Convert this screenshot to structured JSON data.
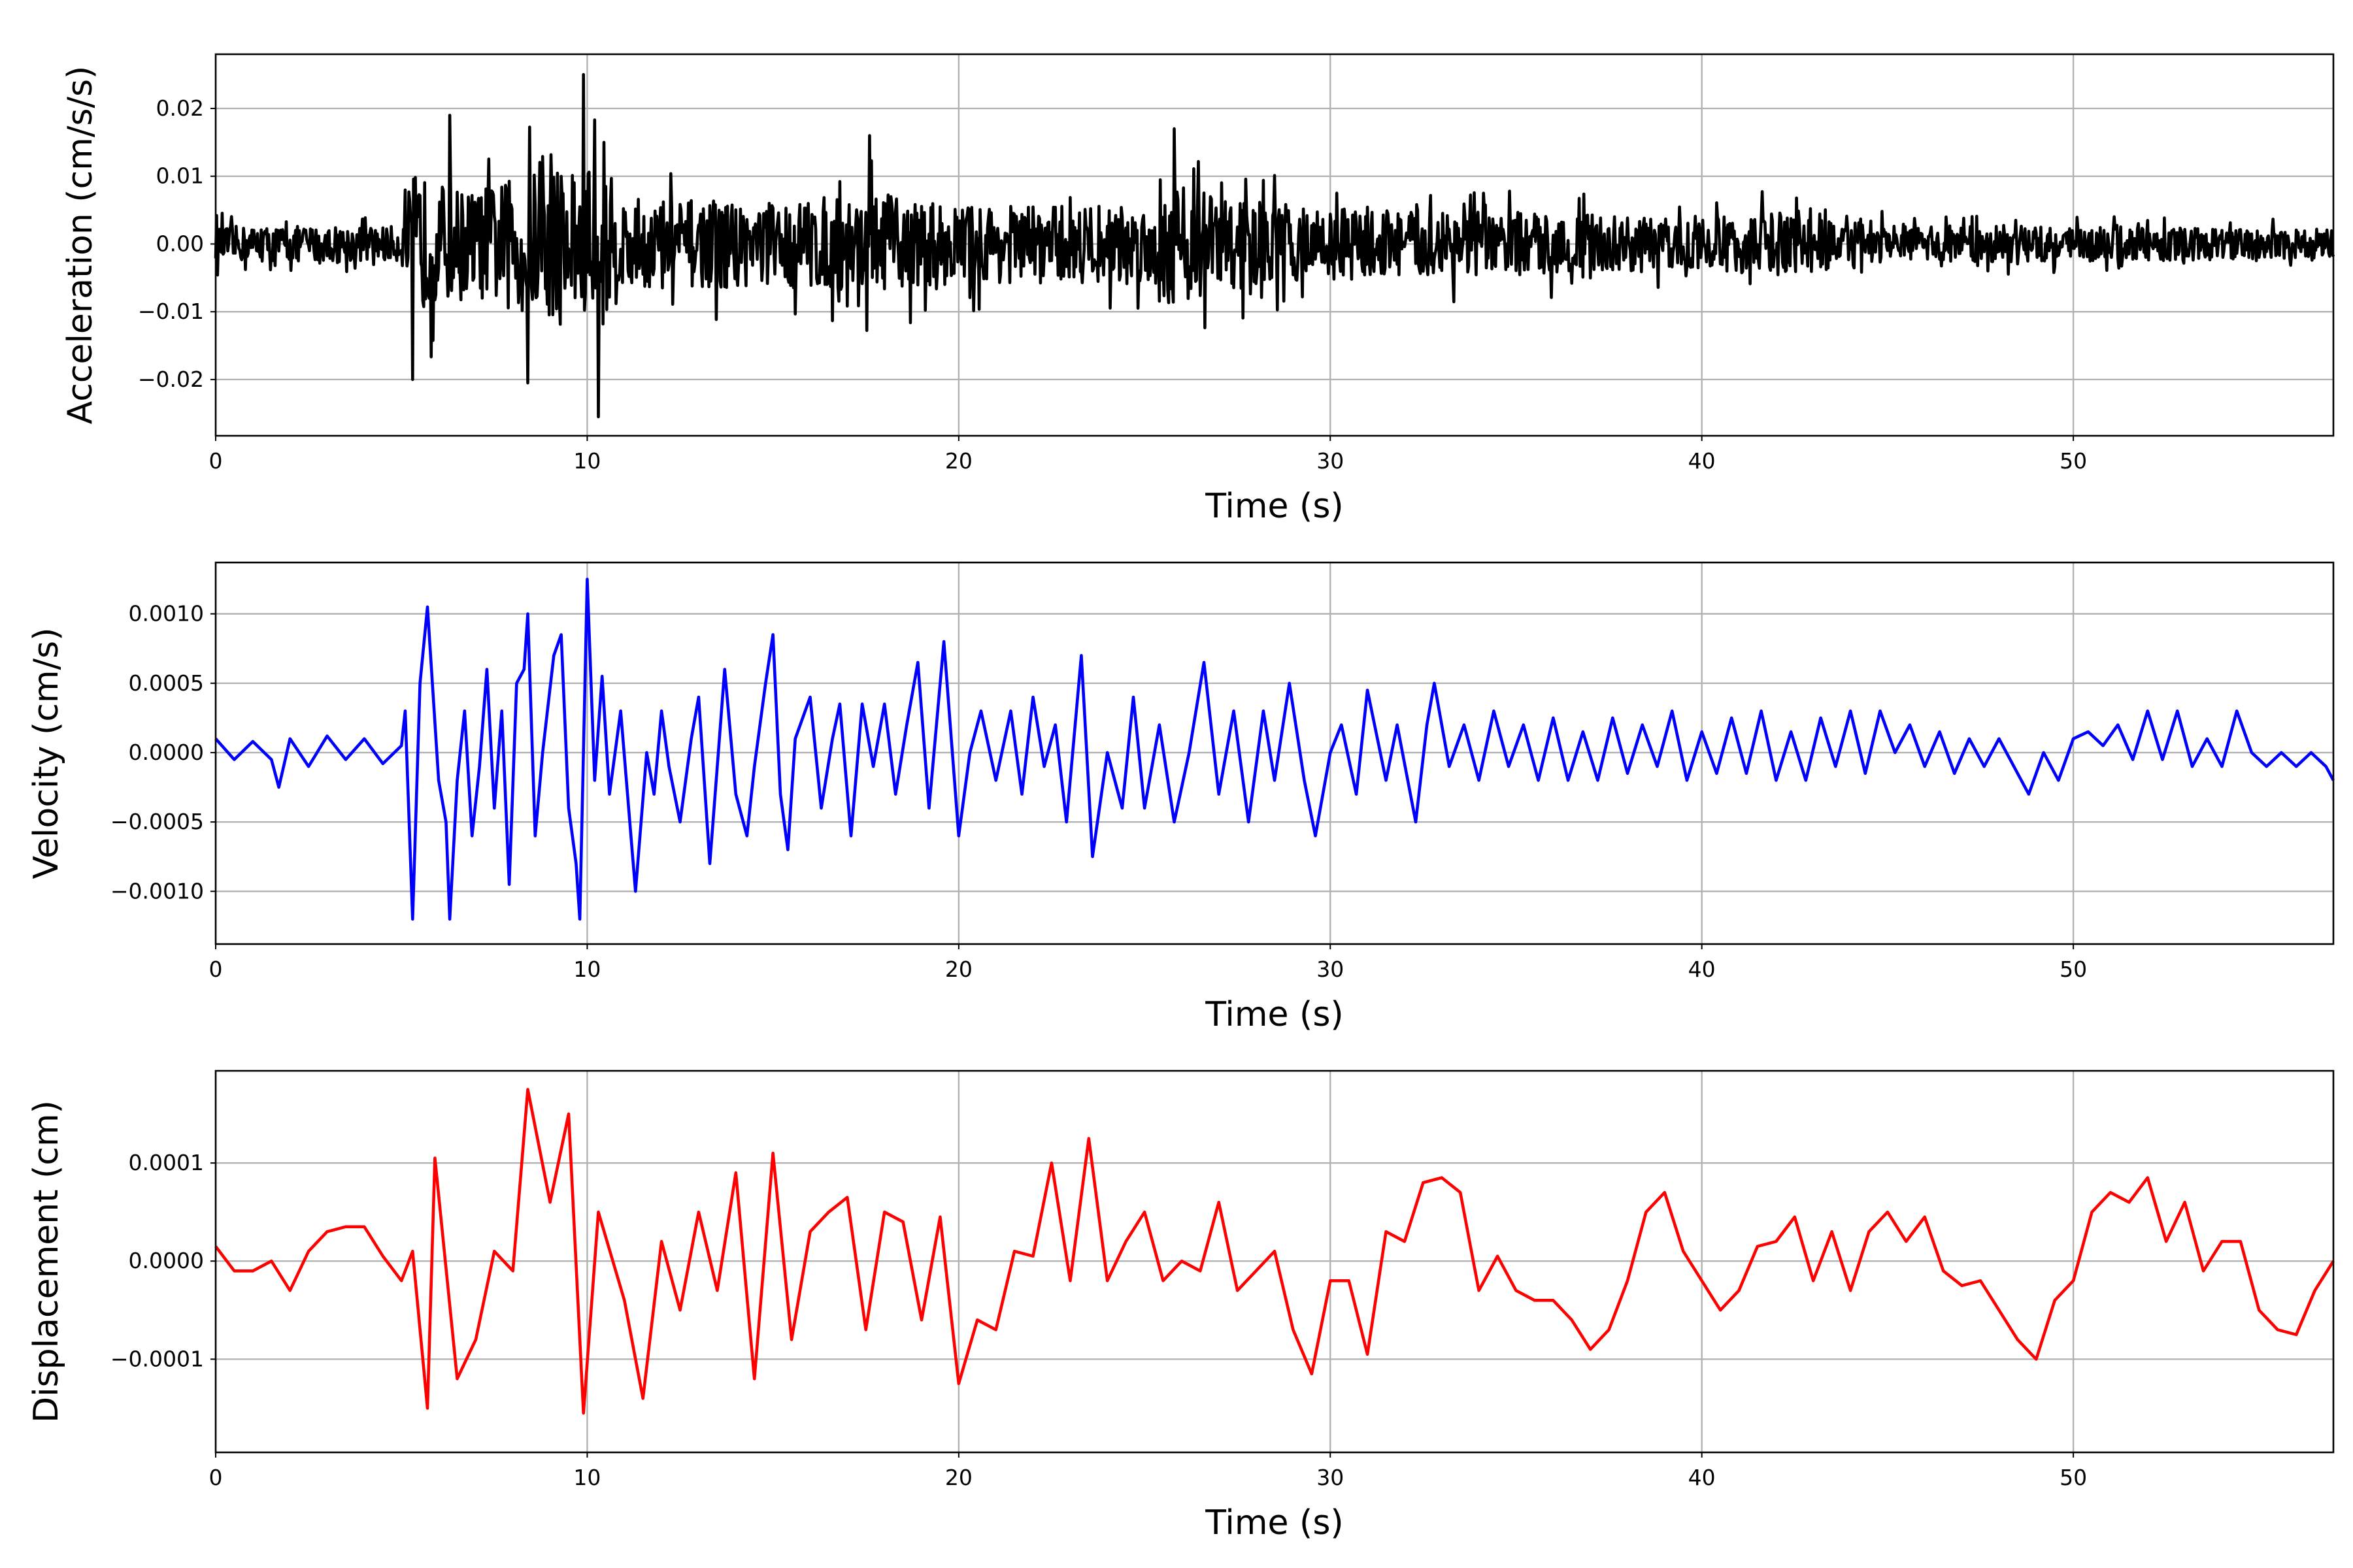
{
  "chart_data": [
    {
      "type": "line",
      "title": "",
      "xlabel": "Time (s)",
      "ylabel": "Acceleration (cm/s/s)",
      "xlim": [
        0,
        57
      ],
      "ylim": [
        -0.0283,
        0.028
      ],
      "xticks": [
        0,
        10,
        20,
        30,
        40,
        50
      ],
      "xtick_labels": [
        "0",
        "10",
        "20",
        "30",
        "40",
        "50"
      ],
      "yticks": [
        -0.02,
        -0.01,
        0,
        0.01,
        0.02
      ],
      "ytick_labels": [
        "−0.02",
        "−0.01",
        "0.00",
        "0.01",
        "0.02"
      ],
      "grid": true,
      "color": "#000000",
      "series_note": "dense noisy record; amplitude envelope (t, amplitude) and notable peaks (t, value)",
      "envelope": [
        [
          0,
          0.005
        ],
        [
          5,
          0.005
        ],
        [
          5.3,
          0.02
        ],
        [
          6,
          0.017
        ],
        [
          7,
          0.015
        ],
        [
          8.4,
          0.02
        ],
        [
          9.9,
          0.025
        ],
        [
          10.3,
          0.025
        ],
        [
          11,
          0.013
        ],
        [
          15,
          0.012
        ],
        [
          17.6,
          0.014
        ],
        [
          20,
          0.011
        ],
        [
          25,
          0.011
        ],
        [
          25.8,
          0.017
        ],
        [
          28,
          0.012
        ],
        [
          30,
          0.01
        ],
        [
          35,
          0.009
        ],
        [
          40,
          0.007
        ],
        [
          42,
          0.009
        ],
        [
          45,
          0.005
        ],
        [
          50,
          0.005
        ],
        [
          57,
          0.004
        ]
      ],
      "peaks": [
        [
          9.9,
          0.025
        ],
        [
          10.3,
          -0.0255
        ],
        [
          5.3,
          -0.02
        ],
        [
          8.4,
          -0.0205
        ],
        [
          6.3,
          0.019
        ],
        [
          25.8,
          0.017
        ],
        [
          17.6,
          0.016
        ]
      ]
    },
    {
      "type": "line",
      "xlabel": "Time (s)",
      "ylabel": "Velocity (cm/s)",
      "xlim": [
        0,
        57
      ],
      "ylim": [
        -0.00138,
        0.00137
      ],
      "xticks": [
        0,
        10,
        20,
        30,
        40,
        50
      ],
      "xtick_labels": [
        "0",
        "10",
        "20",
        "30",
        "40",
        "50"
      ],
      "yticks": [
        -0.001,
        -0.0005,
        0,
        0.0005,
        0.001
      ],
      "ytick_labels": [
        "−0.0010",
        "−0.0005",
        "0.0000",
        "0.0005",
        "0.0010"
      ],
      "grid": true,
      "color": "#0000ff",
      "y_scale": 0.0001,
      "points": [
        [
          0,
          1
        ],
        [
          0.5,
          -0.5
        ],
        [
          1,
          0.8
        ],
        [
          1.5,
          -0.5
        ],
        [
          1.7,
          -2.5
        ],
        [
          2,
          1
        ],
        [
          2.5,
          -1
        ],
        [
          3,
          1.2
        ],
        [
          3.5,
          -0.5
        ],
        [
          4,
          1
        ],
        [
          4.5,
          -0.8
        ],
        [
          5,
          0.5
        ],
        [
          5.1,
          3
        ],
        [
          5.3,
          -12
        ],
        [
          5.5,
          5
        ],
        [
          5.7,
          10.5
        ],
        [
          6,
          -2
        ],
        [
          6.2,
          -5
        ],
        [
          6.3,
          -12
        ],
        [
          6.5,
          -2
        ],
        [
          6.7,
          3
        ],
        [
          6.9,
          -6
        ],
        [
          7.1,
          -1
        ],
        [
          7.3,
          6
        ],
        [
          7.5,
          -4
        ],
        [
          7.7,
          3
        ],
        [
          7.9,
          -9.5
        ],
        [
          8.1,
          5
        ],
        [
          8.3,
          6
        ],
        [
          8.4,
          10
        ],
        [
          8.6,
          -6
        ],
        [
          8.8,
          0
        ],
        [
          9.1,
          7
        ],
        [
          9.3,
          8.5
        ],
        [
          9.5,
          -4
        ],
        [
          9.7,
          -8
        ],
        [
          9.8,
          -12
        ],
        [
          10,
          12.5
        ],
        [
          10.2,
          -2
        ],
        [
          10.4,
          5.5
        ],
        [
          10.6,
          -3
        ],
        [
          10.9,
          3
        ],
        [
          11.3,
          -10
        ],
        [
          11.6,
          0
        ],
        [
          11.8,
          -3
        ],
        [
          12,
          3
        ],
        [
          12.2,
          -1
        ],
        [
          12.5,
          -5
        ],
        [
          12.8,
          1
        ],
        [
          13,
          4
        ],
        [
          13.3,
          -8
        ],
        [
          13.5,
          -1
        ],
        [
          13.7,
          6
        ],
        [
          14,
          -3
        ],
        [
          14.3,
          -6
        ],
        [
          14.5,
          -1
        ],
        [
          14.8,
          5
        ],
        [
          15,
          8.5
        ],
        [
          15.2,
          -3
        ],
        [
          15.4,
          -7
        ],
        [
          15.6,
          1
        ],
        [
          16,
          4
        ],
        [
          16.3,
          -4
        ],
        [
          16.6,
          1
        ],
        [
          16.8,
          3.5
        ],
        [
          17.1,
          -6
        ],
        [
          17.4,
          3.5
        ],
        [
          17.7,
          -1
        ],
        [
          18,
          3.5
        ],
        [
          18.3,
          -3
        ],
        [
          18.6,
          2
        ],
        [
          18.9,
          6.5
        ],
        [
          19.2,
          -4
        ],
        [
          19.6,
          8
        ],
        [
          20,
          -6
        ],
        [
          20.3,
          0
        ],
        [
          20.6,
          3
        ],
        [
          21,
          -2
        ],
        [
          21.4,
          3
        ],
        [
          21.7,
          -3
        ],
        [
          22,
          4
        ],
        [
          22.3,
          -1
        ],
        [
          22.6,
          2
        ],
        [
          22.9,
          -5
        ],
        [
          23.3,
          7
        ],
        [
          23.6,
          -7.5
        ],
        [
          24,
          0
        ],
        [
          24.4,
          -4
        ],
        [
          24.7,
          4
        ],
        [
          25,
          -4
        ],
        [
          25.4,
          2
        ],
        [
          25.8,
          -5
        ],
        [
          26.2,
          0
        ],
        [
          26.6,
          6.5
        ],
        [
          27,
          -3
        ],
        [
          27.4,
          3
        ],
        [
          27.8,
          -5
        ],
        [
          28.2,
          3
        ],
        [
          28.5,
          -2
        ],
        [
          28.9,
          5
        ],
        [
          29.3,
          -2
        ],
        [
          29.6,
          -6
        ],
        [
          30,
          0
        ],
        [
          30.3,
          2
        ],
        [
          30.7,
          -3
        ],
        [
          31,
          4.5
        ],
        [
          31.5,
          -2
        ],
        [
          31.8,
          2
        ],
        [
          32.3,
          -5
        ],
        [
          32.6,
          2
        ],
        [
          32.8,
          5
        ],
        [
          33.2,
          -1
        ],
        [
          33.6,
          2
        ],
        [
          34,
          -2
        ],
        [
          34.4,
          3
        ],
        [
          34.8,
          -1
        ],
        [
          35.2,
          2
        ],
        [
          35.6,
          -2
        ],
        [
          36,
          2.5
        ],
        [
          36.4,
          -2
        ],
        [
          36.8,
          1.5
        ],
        [
          37.2,
          -2
        ],
        [
          37.6,
          2.5
        ],
        [
          38,
          -1.5
        ],
        [
          38.4,
          2
        ],
        [
          38.8,
          -1
        ],
        [
          39.2,
          3
        ],
        [
          39.6,
          -2
        ],
        [
          40,
          1.5
        ],
        [
          40.4,
          -1.5
        ],
        [
          40.8,
          2.5
        ],
        [
          41.2,
          -1.5
        ],
        [
          41.6,
          3
        ],
        [
          42,
          -2
        ],
        [
          42.4,
          1.5
        ],
        [
          42.8,
          -2
        ],
        [
          43.2,
          2.5
        ],
        [
          43.6,
          -1
        ],
        [
          44,
          3
        ],
        [
          44.4,
          -1.5
        ],
        [
          44.8,
          3
        ],
        [
          45.2,
          0
        ],
        [
          45.6,
          2
        ],
        [
          46,
          -1
        ],
        [
          46.4,
          1.5
        ],
        [
          46.8,
          -1.5
        ],
        [
          47.2,
          1
        ],
        [
          47.6,
          -1
        ],
        [
          48,
          1
        ],
        [
          48.4,
          -1
        ],
        [
          48.8,
          -3
        ],
        [
          49.2,
          0
        ],
        [
          49.6,
          -2
        ],
        [
          50,
          1
        ],
        [
          50.4,
          1.5
        ],
        [
          50.8,
          0.5
        ],
        [
          51.2,
          2
        ],
        [
          51.6,
          -0.5
        ],
        [
          52,
          3
        ],
        [
          52.4,
          -0.5
        ],
        [
          52.8,
          3
        ],
        [
          53.2,
          -1
        ],
        [
          53.6,
          1
        ],
        [
          54,
          -1
        ],
        [
          54.4,
          3
        ],
        [
          54.8,
          0
        ],
        [
          55.2,
          -1
        ],
        [
          55.6,
          0
        ],
        [
          56,
          -1
        ],
        [
          56.4,
          0
        ],
        [
          56.8,
          -1
        ],
        [
          57,
          -2
        ]
      ]
    },
    {
      "type": "line",
      "xlabel": "Time (s)",
      "ylabel": "Displacement (cm)",
      "xlim": [
        0,
        57
      ],
      "ylim": [
        -0.000195,
        0.000194
      ],
      "xticks": [
        0,
        10,
        20,
        30,
        40,
        50
      ],
      "xtick_labels": [
        "0",
        "10",
        "20",
        "30",
        "40",
        "50"
      ],
      "yticks": [
        -0.0001,
        0,
        0.0001
      ],
      "ytick_labels": [
        "−0.0001",
        "0.0000",
        "0.0001"
      ],
      "grid": true,
      "color": "#ff0000",
      "y_scale": 0.0001,
      "points": [
        [
          0,
          0.15
        ],
        [
          0.5,
          -0.1
        ],
        [
          1,
          -0.1
        ],
        [
          1.5,
          0
        ],
        [
          2,
          -0.3
        ],
        [
          2.5,
          0.1
        ],
        [
          3,
          0.3
        ],
        [
          3.5,
          0.35
        ],
        [
          4,
          0.35
        ],
        [
          4.5,
          0.05
        ],
        [
          5,
          -0.2
        ],
        [
          5.3,
          0.1
        ],
        [
          5.7,
          -1.5
        ],
        [
          5.9,
          1.05
        ],
        [
          6.5,
          -1.2
        ],
        [
          7,
          -0.8
        ],
        [
          7.5,
          0.1
        ],
        [
          8,
          -0.1
        ],
        [
          8.4,
          1.75
        ],
        [
          9,
          0.6
        ],
        [
          9.5,
          1.5
        ],
        [
          9.9,
          -1.55
        ],
        [
          10.3,
          0.5
        ],
        [
          11,
          -0.4
        ],
        [
          11.5,
          -1.4
        ],
        [
          12,
          0.2
        ],
        [
          12.5,
          -0.5
        ],
        [
          13,
          0.5
        ],
        [
          13.5,
          -0.3
        ],
        [
          14,
          0.9
        ],
        [
          14.5,
          -1.2
        ],
        [
          15,
          1.1
        ],
        [
          15.5,
          -0.8
        ],
        [
          16,
          0.3
        ],
        [
          16.5,
          0.5
        ],
        [
          17,
          0.65
        ],
        [
          17.5,
          -0.7
        ],
        [
          18,
          0.5
        ],
        [
          18.5,
          0.4
        ],
        [
          19,
          -0.6
        ],
        [
          19.5,
          0.45
        ],
        [
          20,
          -1.25
        ],
        [
          20.5,
          -0.6
        ],
        [
          21,
          -0.7
        ],
        [
          21.5,
          0.1
        ],
        [
          22,
          0.05
        ],
        [
          22.5,
          1
        ],
        [
          23,
          -0.2
        ],
        [
          23.5,
          1.25
        ],
        [
          24,
          -0.2
        ],
        [
          24.5,
          0.2
        ],
        [
          25,
          0.5
        ],
        [
          25.5,
          -0.2
        ],
        [
          26,
          0
        ],
        [
          26.5,
          -0.1
        ],
        [
          27,
          0.6
        ],
        [
          27.5,
          -0.3
        ],
        [
          28,
          -0.1
        ],
        [
          28.5,
          0.1
        ],
        [
          29,
          -0.7
        ],
        [
          29.5,
          -1.15
        ],
        [
          30,
          -0.2
        ],
        [
          30.5,
          -0.2
        ],
        [
          31,
          -0.95
        ],
        [
          31.5,
          0.3
        ],
        [
          32,
          0.2
        ],
        [
          32.5,
          0.8
        ],
        [
          33,
          0.85
        ],
        [
          33.5,
          0.7
        ],
        [
          34,
          -0.3
        ],
        [
          34.5,
          0.05
        ],
        [
          35,
          -0.3
        ],
        [
          35.5,
          -0.4
        ],
        [
          36,
          -0.4
        ],
        [
          36.5,
          -0.6
        ],
        [
          37,
          -0.9
        ],
        [
          37.5,
          -0.7
        ],
        [
          38,
          -0.2
        ],
        [
          38.5,
          0.5
        ],
        [
          39,
          0.7
        ],
        [
          39.5,
          0.1
        ],
        [
          40,
          -0.2
        ],
        [
          40.5,
          -0.5
        ],
        [
          41,
          -0.3
        ],
        [
          41.5,
          0.15
        ],
        [
          42,
          0.2
        ],
        [
          42.5,
          0.45
        ],
        [
          43,
          -0.2
        ],
        [
          43.5,
          0.3
        ],
        [
          44,
          -0.3
        ],
        [
          44.5,
          0.3
        ],
        [
          45,
          0.5
        ],
        [
          45.5,
          0.2
        ],
        [
          46,
          0.45
        ],
        [
          46.5,
          -0.1
        ],
        [
          47,
          -0.25
        ],
        [
          47.5,
          -0.2
        ],
        [
          48,
          -0.5
        ],
        [
          48.5,
          -0.8
        ],
        [
          49,
          -1.0
        ],
        [
          49.5,
          -0.4
        ],
        [
          50,
          -0.2
        ],
        [
          50.5,
          0.5
        ],
        [
          51,
          0.7
        ],
        [
          51.5,
          0.6
        ],
        [
          52,
          0.85
        ],
        [
          52.5,
          0.2
        ],
        [
          53,
          0.6
        ],
        [
          53.5,
          -0.1
        ],
        [
          54,
          0.2
        ],
        [
          54.5,
          0.2
        ],
        [
          55,
          -0.5
        ],
        [
          55.5,
          -0.7
        ],
        [
          56,
          -0.75
        ],
        [
          56.5,
          -0.3
        ],
        [
          57,
          0
        ]
      ]
    }
  ]
}
